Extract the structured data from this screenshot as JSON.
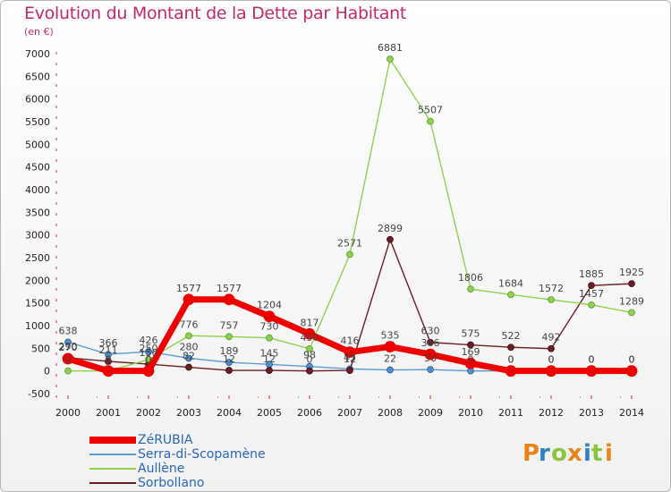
{
  "title": "Evolution du Montant de la Dette par Habitant",
  "subtitle": "(en €)",
  "logo_text": "Proxiti",
  "chart_data": {
    "type": "line",
    "title": "Evolution du Montant de la Dette par Habitant",
    "subtitle": "(en €)",
    "xlabel": "",
    "ylabel": "",
    "x": [
      "2000",
      "2001",
      "2002",
      "2003",
      "2004",
      "2005",
      "2006",
      "2007",
      "2008",
      "2009",
      "2010",
      "2011",
      "2012",
      "2013",
      "2014"
    ],
    "ylim": [
      -500,
      7000
    ],
    "yticks": [
      -500,
      0,
      500,
      1000,
      1500,
      2000,
      2500,
      3000,
      3500,
      4000,
      4500,
      5000,
      5500,
      6000,
      6500,
      7000
    ],
    "grid": false,
    "legend_position": "bottom-left",
    "series": [
      {
        "name": "ZéRUBIA",
        "color": "#ee0000",
        "values": [
          270,
          0,
          0,
          1577,
          1577,
          1204,
          817,
          416,
          535,
          366,
          169,
          0,
          0,
          0,
          0
        ]
      },
      {
        "name": "Serra-di-Scopamène",
        "color": "#5b9bd5",
        "values": [
          638,
          366,
          426,
          280,
          189,
          145,
          98,
          45,
          22,
          30,
          0,
          0,
          0,
          0,
          0
        ]
      },
      {
        "name": "Aullène",
        "color": "#8fd14f",
        "values": [
          0,
          0,
          250,
          776,
          757,
          730,
          490,
          2571,
          6881,
          5507,
          1806,
          1684,
          1572,
          1457,
          1289
        ]
      },
      {
        "name": "Sorbollano",
        "color": "#6b1d24",
        "values": [
          290,
          211,
          150,
          82,
          12,
          12,
          0,
          12,
          2899,
          630,
          575,
          522,
          492,
          1885,
          1925
        ]
      }
    ]
  }
}
